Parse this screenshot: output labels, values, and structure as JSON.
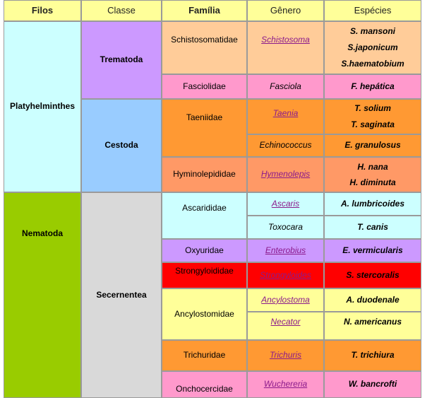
{
  "headers": {
    "filos": "Filos",
    "classe": "Classe",
    "familia": "Família",
    "genero": "Gênero",
    "especies": "Espécies"
  },
  "filos": {
    "platyhelminthes": "Platyhelminthes",
    "nematoda": "Nematoda"
  },
  "classes": {
    "trematoda": "Trematoda",
    "cestoda": "Cestoda",
    "secernentea": "Secernentea"
  },
  "families": {
    "schistosomatidae": "Schistosomatidae",
    "fasciolidae": "Fasciolidae",
    "taeniidae": "Taeniidae",
    "hyminolepididae": "Hyminolepididae",
    "ascarididae": "Ascarididae",
    "oxyuridae": "Oxyuridae",
    "strongyloididae": "Strongyloididae",
    "ancylostomidae": "Ancylostomidae",
    "trichuridae": "Trichuridae",
    "onchocercidae": "Onchocercidae"
  },
  "genera": {
    "schistosoma": "Schistosoma",
    "fasciola": "Fasciola",
    "taenia": "Taenia",
    "echinococcus": "Echinococcus",
    "hymenolepis": "Hymenolepis",
    "ascaris": "Ascaris",
    "toxocara": "Toxocara",
    "enterobius": "Enterobius",
    "strongyloides": "Strongyloides",
    "ancylostoma": "Ancylostoma",
    "necator": "Necator",
    "trichuris": "Trichuris",
    "wuchereria": "Wuchereria"
  },
  "species": {
    "s_mansoni": "S. mansoni",
    "s_japonicum": "S.japonicum",
    "s_haematobium": "S.haematobium",
    "f_hepatica": "F. hepática",
    "t_solium": "T. solium",
    "t_saginata": "T. saginata",
    "e_granulosus": "E. granulosus",
    "h_nana": "H. nana",
    "h_diminuta": "H. diminuta",
    "a_lumbricoides": "A. lumbricoides",
    "t_canis": "T. canis",
    "e_vermicularis": "E. vermicularis",
    "s_stercoralis": "S. stercoralis",
    "a_duodenale": "A. duodenale",
    "n_americanus": "N. americanus",
    "t_trichiura": "T. trichiura",
    "w_bancrofti": "W. bancrofti"
  },
  "colors": {
    "header": "#ffff99",
    "platyhelminthes": "#ccffff",
    "nematoda": "#99cc00",
    "trematoda": "#cc99ff",
    "cestoda": "#99ccff",
    "secernentea": "#d9d9d9",
    "peach": "#ffcc99",
    "pink": "#ff99cc",
    "orange": "#ff9933",
    "salmon": "#ff9966",
    "light_cyan": "#ccffff",
    "lavender": "#cc99ff",
    "red": "#ff0000",
    "light_yellow": "#ffff99"
  }
}
